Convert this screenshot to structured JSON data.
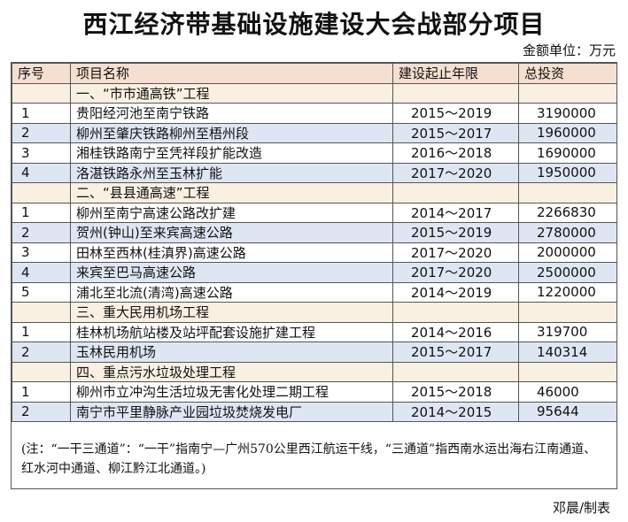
{
  "title": "西江经济带基础设施建设大会战部分项目",
  "unit": "金额单位：万元",
  "columns": [
    "序号",
    "项目名称",
    "建设起止年限",
    "总投资"
  ],
  "sections": [
    {
      "heading": "一、“市市通高铁”工程",
      "rows": [
        {
          "no": "1",
          "name": "贵阳经河池至南宁铁路",
          "years": "2015～2019",
          "amount": "3190000"
        },
        {
          "no": "2",
          "name": "柳州至肇庆铁路柳州至梧州段",
          "years": "2015～2017",
          "amount": "1960000"
        },
        {
          "no": "3",
          "name": "湘桂铁路南宁至凭祥段扩能改造",
          "years": "2016～2018",
          "amount": "1690000"
        },
        {
          "no": "4",
          "name": "洛湛铁路永州至玉林扩能",
          "years": "2017～2020",
          "amount": "1950000"
        }
      ]
    },
    {
      "heading": "二、“县县通高速”工程",
      "rows": [
        {
          "no": "1",
          "name": "柳州至南宁高速公路改扩建",
          "years": "2014～2017",
          "amount": "2266830"
        },
        {
          "no": "2",
          "name": "贺州(钟山)至来宾高速公路",
          "years": "2015～2019",
          "amount": "2780000"
        },
        {
          "no": "3",
          "name": "田林至西林(桂滇界)高速公路",
          "years": "2017～2020",
          "amount": "2000000"
        },
        {
          "no": "4",
          "name": "来宾至巴马高速公路",
          "years": "2017～2020",
          "amount": "2500000"
        },
        {
          "no": "5",
          "name": "浦北至北流(清湾)高速公路",
          "years": "2014～2019",
          "amount": "1220000"
        }
      ]
    },
    {
      "heading": "三、重大民用机场工程",
      "rows": [
        {
          "no": "1",
          "name": "桂林机场航站楼及站坪配套设施扩建工程",
          "years": "2014～2016",
          "amount": "319700"
        },
        {
          "no": "2",
          "name": "玉林民用机场",
          "years": "2015～2017",
          "amount": "140314"
        }
      ]
    },
    {
      "heading": "四、重点污水垃圾处理工程",
      "rows": [
        {
          "no": "1",
          "name": "柳州市立冲沟生活垃圾无害化处理二期工程",
          "years": "2015～2018",
          "amount": "46000"
        },
        {
          "no": "2",
          "name": "南宁市平里静脉产业园垃圾焚烧发电厂",
          "years": "2014～2015",
          "amount": "95644"
        }
      ]
    }
  ],
  "note": "(注：“一干三通道”：“一干”指南宁—广州570公里西江航运干线，“三通道”指西南水运出海右江南通道、红水河中通道、柳江黔江北通道。)",
  "credit": "邓晨/制表",
  "colors": {
    "header_bg": "#f5dfd0",
    "section_bg": "#faf0e2",
    "alt_row_bg": "#dfe6f3",
    "row_bg": "#ffffff",
    "border": "#555555"
  }
}
